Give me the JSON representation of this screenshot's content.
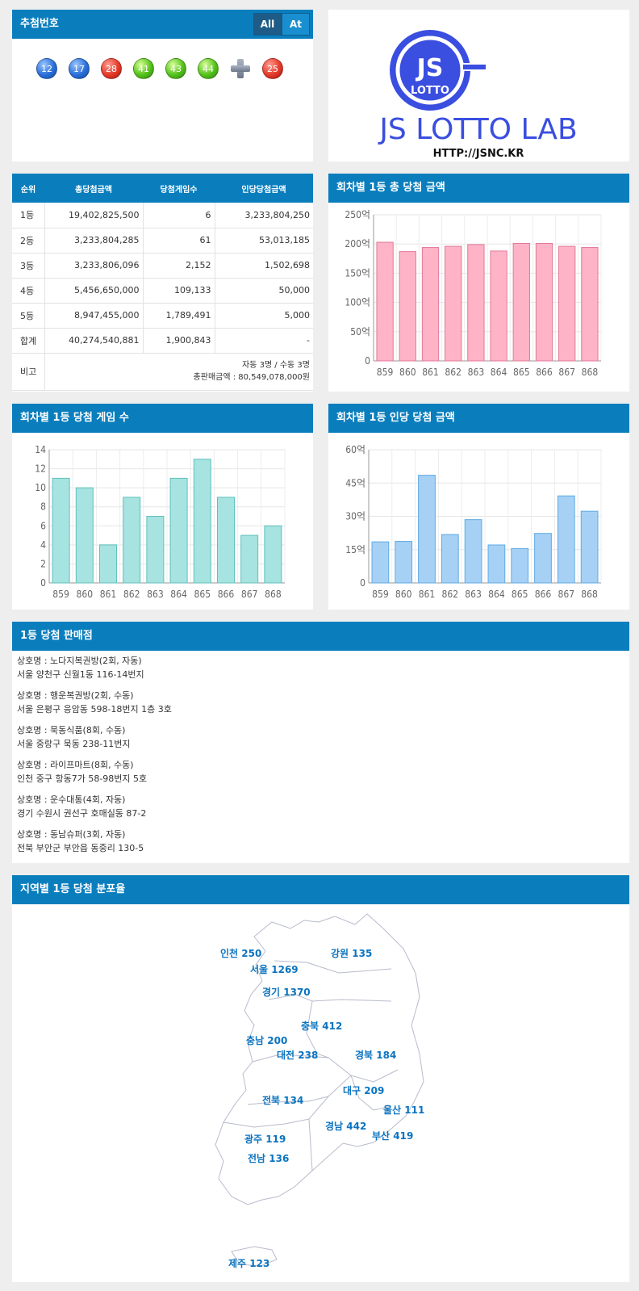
{
  "draw": {
    "title": "추첨번호",
    "toggle": [
      "All",
      "At"
    ],
    "numbers": [
      {
        "n": "12",
        "color": "blue"
      },
      {
        "n": "17",
        "color": "blue"
      },
      {
        "n": "28",
        "color": "red"
      },
      {
        "n": "41",
        "color": "green"
      },
      {
        "n": "43",
        "color": "green"
      },
      {
        "n": "44",
        "color": "green"
      }
    ],
    "bonus": {
      "n": "25",
      "color": "red"
    }
  },
  "logo": {
    "mark_top": "JS",
    "mark_bottom": "LOTTO",
    "name": "JS LOTTO LAB",
    "url": "HTTP://JSNC.KR",
    "color": "#3a4ee0"
  },
  "prize_table": {
    "headers": [
      "순위",
      "총당첨금액",
      "당첨게임수",
      "인당당첨금액"
    ],
    "rows": [
      [
        "1등",
        "19,402,825,500",
        "6",
        "3,233,804,250"
      ],
      [
        "2등",
        "3,233,804,285",
        "61",
        "53,013,185"
      ],
      [
        "3등",
        "3,233,806,096",
        "2,152",
        "1,502,698"
      ],
      [
        "4등",
        "5,456,650,000",
        "109,133",
        "50,000"
      ],
      [
        "5등",
        "8,947,455,000",
        "1,789,491",
        "5,000"
      ],
      [
        "합계",
        "40,274,540,881",
        "1,900,843",
        "-"
      ]
    ],
    "note_label": "비고",
    "note_line1": "자동 3명 / 수동 3명",
    "note_line2": "총판매금액 : 80,549,078,000원"
  },
  "chart_data": [
    {
      "id": "total",
      "type": "bar",
      "title": "회차별 1등 총 당첨 금액",
      "categories": [
        "859",
        "860",
        "861",
        "862",
        "863",
        "864",
        "865",
        "866",
        "867",
        "868"
      ],
      "values": [
        203,
        187,
        194,
        196,
        199,
        188,
        201,
        201,
        196,
        194
      ],
      "ylim": [
        0,
        250
      ],
      "ticks": [
        0,
        50,
        100,
        150,
        200,
        250
      ],
      "tick_labels": [
        "0",
        "50억",
        "100억",
        "150억",
        "200억",
        "250억"
      ],
      "fill": "#ffb3c6",
      "stroke": "#e07a98"
    },
    {
      "id": "games",
      "type": "bar",
      "title": "회차별 1등 당첨 게임 수",
      "categories": [
        "859",
        "860",
        "861",
        "862",
        "863",
        "864",
        "865",
        "866",
        "867",
        "868"
      ],
      "values": [
        11,
        10,
        4,
        9,
        7,
        11,
        13,
        9,
        5,
        6
      ],
      "ylim": [
        0,
        14
      ],
      "ticks": [
        0,
        2,
        4,
        6,
        8,
        10,
        12,
        14
      ],
      "tick_labels": [
        "0",
        "2",
        "4",
        "6",
        "8",
        "10",
        "12",
        "14"
      ],
      "fill": "#a7e3e0",
      "stroke": "#5fc1bb"
    },
    {
      "id": "per",
      "type": "bar",
      "title": "회차별 1등 인당 당첨 금액",
      "categories": [
        "859",
        "860",
        "861",
        "862",
        "863",
        "864",
        "865",
        "866",
        "867",
        "868"
      ],
      "values": [
        18.5,
        18.7,
        48.5,
        21.8,
        28.5,
        17.1,
        15.5,
        22.3,
        39.2,
        32.3
      ],
      "ylim": [
        0,
        60
      ],
      "ticks": [
        0,
        15,
        30,
        45,
        60
      ],
      "tick_labels": [
        "0",
        "15억",
        "30억",
        "45억",
        "60억"
      ],
      "fill": "#a6d1f5",
      "stroke": "#5ea9e3"
    }
  ],
  "shops": {
    "title": "1등 당첨 판매점",
    "items": [
      {
        "name": "상호명 : 노다지복권방(2회, 자동)",
        "addr": "서울 양천구 신월1동 116-14번지"
      },
      {
        "name": "상호명 : 행운복권방(2회, 수동)",
        "addr": "서울 은평구 응암동 598-18번지 1층 3호"
      },
      {
        "name": "상호명 : 묵동식품(8회, 수동)",
        "addr": "서울 중랑구 묵동 238-11번지"
      },
      {
        "name": "상호명 : 라이프마트(8회, 수동)",
        "addr": "인천 중구 항동7가 58-98번지 5호"
      },
      {
        "name": "상호명 : 운수대통(4회, 자동)",
        "addr": "경기 수원시 권선구 호매실동 87-2"
      },
      {
        "name": "상호명 : 동남슈퍼(3회, 자동)",
        "addr": "전북 부안군 부안읍 동중리 130-5"
      }
    ]
  },
  "region": {
    "title": "지역별 1등 당첨 분포율",
    "labels": [
      {
        "name": "인천",
        "count": "250"
      },
      {
        "name": "서울",
        "count": "1269"
      },
      {
        "name": "강원",
        "count": "135"
      },
      {
        "name": "경기",
        "count": "1370"
      },
      {
        "name": "충북",
        "count": "412"
      },
      {
        "name": "충남",
        "count": "200"
      },
      {
        "name": "대전",
        "count": "238"
      },
      {
        "name": "경북",
        "count": "184"
      },
      {
        "name": "대구",
        "count": "209"
      },
      {
        "name": "전북",
        "count": "134"
      },
      {
        "name": "울산",
        "count": "111"
      },
      {
        "name": "경남",
        "count": "442"
      },
      {
        "name": "부산",
        "count": "419"
      },
      {
        "name": "광주",
        "count": "119"
      },
      {
        "name": "전남",
        "count": "136"
      },
      {
        "name": "제주",
        "count": "123"
      }
    ]
  }
}
